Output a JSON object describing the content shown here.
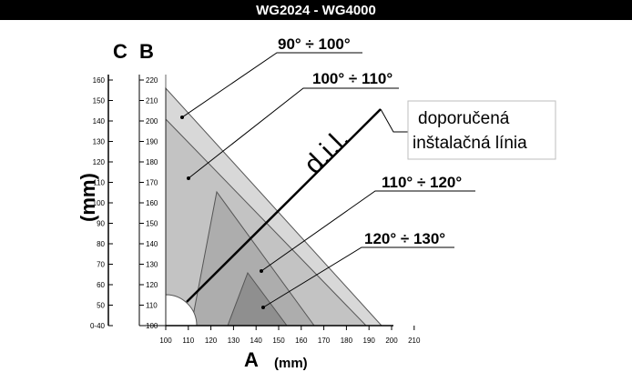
{
  "header": {
    "title": "WG2024 - WG4000"
  },
  "axes": {
    "a_label": "A",
    "a_unit": "(mm)",
    "a_ticks": [
      "100",
      "110",
      "120",
      "130",
      "140",
      "150",
      "160",
      "170",
      "180",
      "190",
      "200",
      "210"
    ],
    "b_label": "B",
    "b_ticks": [
      "100",
      "110",
      "120",
      "130",
      "140",
      "150",
      "160",
      "170",
      "180",
      "190",
      "200",
      "210",
      "220"
    ],
    "c_label": "C",
    "c_ticks": [
      "0-40",
      "50",
      "60",
      "70",
      "80",
      "90",
      "100",
      "110",
      "120",
      "130",
      "140",
      "150",
      "160"
    ],
    "vertical_unit": "(mm)"
  },
  "regions": [
    {
      "label": "90° ÷ 100°",
      "color": "#d5d5d5"
    },
    {
      "label": "100° ÷ 110°",
      "color": "#c2c2c2"
    },
    {
      "label": "110° ÷ 120°",
      "color": "#acacac"
    },
    {
      "label": "120° ÷ 130°",
      "color": "#8f8f8f"
    }
  ],
  "line": {
    "label": "d.i.l."
  },
  "note": {
    "line1": "doporučená",
    "line2": "inštalačná línia"
  }
}
